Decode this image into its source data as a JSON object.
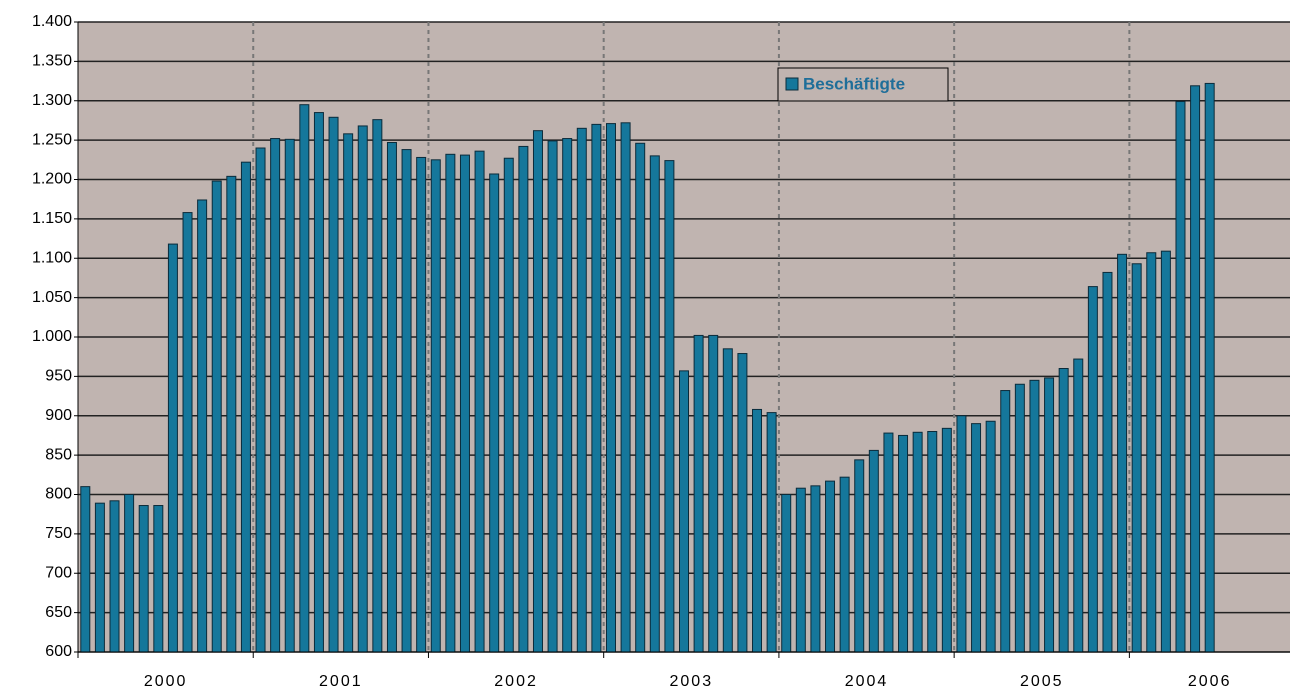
{
  "chart_data": {
    "type": "bar",
    "series": [
      {
        "name": "Beschäftigte",
        "color": "#15779b",
        "values": [
          810,
          789,
          792,
          800,
          786,
          786,
          1118,
          1158,
          1174,
          1198,
          1204,
          1222,
          1240,
          1252,
          1251,
          1295,
          1285,
          1279,
          1258,
          1268,
          1276,
          1247,
          1238,
          1228,
          1225,
          1232,
          1231,
          1236,
          1207,
          1227,
          1242,
          1262,
          1249,
          1252,
          1265,
          1270,
          1271,
          1272,
          1246,
          1230,
          1224,
          957,
          1002,
          1002,
          985,
          979,
          908,
          904,
          800,
          808,
          811,
          817,
          822,
          844,
          856,
          878,
          875,
          879,
          880,
          884,
          900,
          890,
          893,
          932,
          940,
          945,
          948,
          960,
          972,
          1064,
          1082,
          1105,
          1093,
          1107,
          1109,
          1299,
          1319,
          1322,
          null,
          null,
          null,
          null,
          null
        ]
      }
    ],
    "groups": [
      {
        "label": "2000",
        "size": 12
      },
      {
        "label": "2001",
        "size": 12
      },
      {
        "label": "2002",
        "size": 12
      },
      {
        "label": "2003",
        "size": 12
      },
      {
        "label": "2004",
        "size": 12
      },
      {
        "label": "2005",
        "size": 12
      },
      {
        "label": "2006",
        "size": 11
      }
    ],
    "ylim": [
      600,
      1400
    ],
    "yticks": [
      600,
      650,
      700,
      750,
      800,
      850,
      900,
      950,
      {
        "value": 1000,
        "label": "1.000"
      },
      {
        "value": 1050,
        "label": "1.050"
      },
      {
        "value": 1100,
        "label": "1.100"
      },
      {
        "value": 1150,
        "label": "1.150"
      },
      {
        "value": 1200,
        "label": "1.200"
      },
      {
        "value": 1250,
        "label": "1.250"
      },
      {
        "value": 1300,
        "label": "1.300"
      },
      {
        "value": 1350,
        "label": "1.350"
      },
      {
        "value": 1400,
        "label": "1.400"
      }
    ],
    "grid": true,
    "legend": "top-right"
  }
}
